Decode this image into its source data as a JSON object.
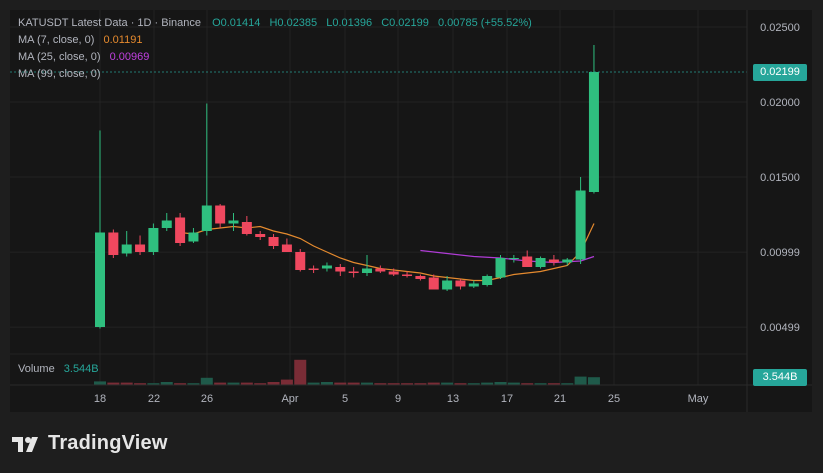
{
  "legend": {
    "symbol_line": "KATUSDT Latest Data · 1D · Binance",
    "open": "O0.01414",
    "high": "H0.02385",
    "low": "L0.01396",
    "close": "C0.02199",
    "change": "0.00785 (+55.52%)",
    "ma7_label": "MA (7, close, 0)",
    "ma7_value": "0.01191",
    "ma25_label": "MA (25, close, 0)",
    "ma25_value": "0.00969",
    "ma99_label": "MA (99, close, 0)",
    "volume_label": "Volume",
    "volume_value": "3.544B"
  },
  "price_axis": {
    "ticks": [
      "0.02500",
      "0.02000",
      "0.01500",
      "0.00999",
      "0.00499"
    ],
    "current_price": "0.02199",
    "volume_badge": "3.544B"
  },
  "time_axis": {
    "ticks": [
      "18",
      "22",
      "26",
      "Apr",
      "5",
      "9",
      "13",
      "17",
      "21",
      "25",
      "May"
    ]
  },
  "brand": {
    "name": "TradingView"
  },
  "colors": {
    "up": "#26a69a",
    "down": "#ef5350",
    "up_body": "#2fbf7f",
    "down_body": "#f0485f",
    "ma7": "#e58a2e",
    "ma25": "#b03cd6",
    "background": "#161616"
  },
  "chart_data": {
    "type": "candlestick",
    "x_start_label": "18",
    "ylim": [
      0.0025,
      0.026
    ],
    "candles": [
      {
        "o": 0.005,
        "h": 0.0181,
        "l": 0.0049,
        "c": 0.0113
      },
      {
        "o": 0.0113,
        "h": 0.0115,
        "l": 0.0096,
        "c": 0.0098
      },
      {
        "o": 0.0099,
        "h": 0.0114,
        "l": 0.0097,
        "c": 0.0105
      },
      {
        "o": 0.0105,
        "h": 0.0111,
        "l": 0.0098,
        "c": 0.01
      },
      {
        "o": 0.01,
        "h": 0.0119,
        "l": 0.0098,
        "c": 0.0116
      },
      {
        "o": 0.0116,
        "h": 0.0126,
        "l": 0.0114,
        "c": 0.0121
      },
      {
        "o": 0.0123,
        "h": 0.0126,
        "l": 0.0104,
        "c": 0.0106
      },
      {
        "o": 0.0107,
        "h": 0.0116,
        "l": 0.0106,
        "c": 0.0113
      },
      {
        "o": 0.0114,
        "h": 0.0199,
        "l": 0.0111,
        "c": 0.0131
      },
      {
        "o": 0.0131,
        "h": 0.0132,
        "l": 0.0116,
        "c": 0.0119
      },
      {
        "o": 0.0119,
        "h": 0.0126,
        "l": 0.0114,
        "c": 0.0121
      },
      {
        "o": 0.012,
        "h": 0.0124,
        "l": 0.0111,
        "c": 0.0112
      },
      {
        "o": 0.0112,
        "h": 0.0114,
        "l": 0.0108,
        "c": 0.011
      },
      {
        "o": 0.011,
        "h": 0.0112,
        "l": 0.0102,
        "c": 0.0104
      },
      {
        "o": 0.0105,
        "h": 0.0109,
        "l": 0.01,
        "c": 0.01
      },
      {
        "o": 0.01,
        "h": 0.0102,
        "l": 0.0087,
        "c": 0.0088
      },
      {
        "o": 0.0089,
        "h": 0.0091,
        "l": 0.0086,
        "c": 0.0088
      },
      {
        "o": 0.0089,
        "h": 0.0093,
        "l": 0.0087,
        "c": 0.0091
      },
      {
        "o": 0.009,
        "h": 0.0092,
        "l": 0.0084,
        "c": 0.0087
      },
      {
        "o": 0.0087,
        "h": 0.009,
        "l": 0.0083,
        "c": 0.0086
      },
      {
        "o": 0.0086,
        "h": 0.0098,
        "l": 0.0084,
        "c": 0.0089
      },
      {
        "o": 0.0089,
        "h": 0.0091,
        "l": 0.0086,
        "c": 0.0087
      },
      {
        "o": 0.0087,
        "h": 0.0089,
        "l": 0.0084,
        "c": 0.0085
      },
      {
        "o": 0.0085,
        "h": 0.0087,
        "l": 0.0083,
        "c": 0.0084
      },
      {
        "o": 0.0084,
        "h": 0.0085,
        "l": 0.0081,
        "c": 0.0082
      },
      {
        "o": 0.0083,
        "h": 0.0085,
        "l": 0.0075,
        "c": 0.0075
      },
      {
        "o": 0.0075,
        "h": 0.0084,
        "l": 0.0074,
        "c": 0.0081
      },
      {
        "o": 0.0081,
        "h": 0.0082,
        "l": 0.0075,
        "c": 0.0077
      },
      {
        "o": 0.0077,
        "h": 0.0081,
        "l": 0.0076,
        "c": 0.0079
      },
      {
        "o": 0.0078,
        "h": 0.0085,
        "l": 0.0077,
        "c": 0.0084
      },
      {
        "o": 0.0083,
        "h": 0.0098,
        "l": 0.0082,
        "c": 0.0096
      },
      {
        "o": 0.0096,
        "h": 0.0098,
        "l": 0.0093,
        "c": 0.0096
      },
      {
        "o": 0.0097,
        "h": 0.0101,
        "l": 0.009,
        "c": 0.009
      },
      {
        "o": 0.009,
        "h": 0.0097,
        "l": 0.0089,
        "c": 0.0096
      },
      {
        "o": 0.0095,
        "h": 0.0098,
        "l": 0.0091,
        "c": 0.0093
      },
      {
        "o": 0.0093,
        "h": 0.0096,
        "l": 0.0091,
        "c": 0.0095
      },
      {
        "o": 0.0095,
        "h": 0.015,
        "l": 0.0092,
        "c": 0.0141
      },
      {
        "o": 0.014,
        "h": 0.0238,
        "l": 0.0139,
        "c": 0.022
      }
    ],
    "ma7": [
      [
        6,
        0.0113
      ],
      [
        7,
        0.0112
      ],
      [
        8,
        0.0115
      ],
      [
        9,
        0.0116
      ],
      [
        10,
        0.0117
      ],
      [
        11,
        0.0116
      ],
      [
        12,
        0.0117
      ],
      [
        13,
        0.0114
      ],
      [
        14,
        0.0112
      ],
      [
        15,
        0.0109
      ],
      [
        16,
        0.0104
      ],
      [
        17,
        0.01
      ],
      [
        18,
        0.0096
      ],
      [
        19,
        0.0093
      ],
      [
        20,
        0.0091
      ],
      [
        21,
        0.0089
      ],
      [
        22,
        0.0088
      ],
      [
        23,
        0.0087
      ],
      [
        24,
        0.0086
      ],
      [
        25,
        0.0084
      ],
      [
        26,
        0.0083
      ],
      [
        27,
        0.0082
      ],
      [
        28,
        0.0081
      ],
      [
        29,
        0.0081
      ],
      [
        30,
        0.0083
      ],
      [
        31,
        0.0085
      ],
      [
        32,
        0.0086
      ],
      [
        33,
        0.0087
      ],
      [
        34,
        0.0089
      ],
      [
        35,
        0.0091
      ],
      [
        36,
        0.01
      ],
      [
        37,
        0.0119
      ]
    ],
    "ma25": [
      [
        24,
        0.0101
      ],
      [
        26,
        0.0099
      ],
      [
        28,
        0.0097
      ],
      [
        30,
        0.0096
      ],
      [
        32,
        0.0094
      ],
      [
        34,
        0.0093
      ],
      [
        36,
        0.0094
      ],
      [
        37,
        0.0097
      ]
    ],
    "volume": [
      6,
      4,
      4,
      3,
      3,
      5,
      3,
      3,
      12,
      4,
      4,
      4,
      3,
      5,
      9,
      42,
      4,
      5,
      4,
      4,
      4,
      3,
      3,
      3,
      3,
      4,
      4,
      3,
      3,
      4,
      5,
      4,
      3,
      3,
      3,
      3,
      14,
      13
    ],
    "volume_down": [
      0,
      1,
      1,
      1,
      0,
      0,
      1,
      0,
      0,
      1,
      0,
      1,
      1,
      1,
      1,
      1,
      0,
      0,
      1,
      1,
      0,
      1,
      1,
      1,
      1,
      1,
      0,
      1,
      0,
      0,
      0,
      0,
      1,
      0,
      1,
      0,
      0,
      0
    ]
  }
}
